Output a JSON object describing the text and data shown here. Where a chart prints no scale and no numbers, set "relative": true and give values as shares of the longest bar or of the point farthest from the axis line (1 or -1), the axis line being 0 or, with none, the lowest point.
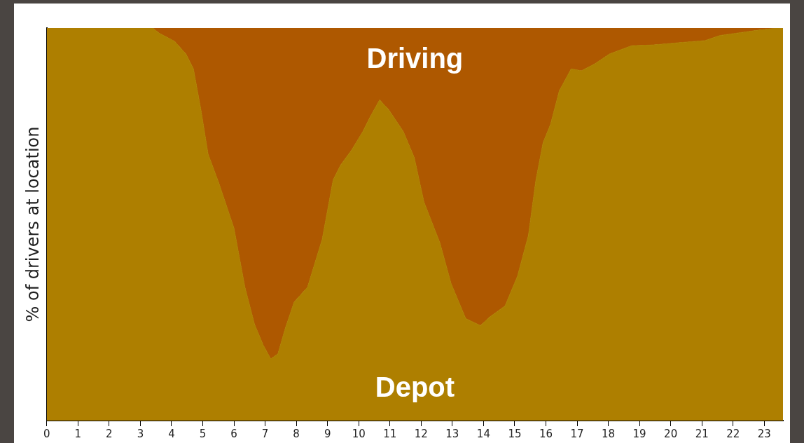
{
  "chart_data": {
    "type": "area",
    "stacked": true,
    "relative": true,
    "legend": false,
    "grid": false,
    "ylabel": "% of drivers at location",
    "x": [
      0,
      3.4,
      3.6,
      4.1,
      4.46,
      4.7,
      4.94,
      5.17,
      5.52,
      6.0,
      6.35,
      6.66,
      6.94,
      7.18,
      7.41,
      7.65,
      7.93,
      8.36,
      8.83,
      9.18,
      9.42,
      9.77,
      10.13,
      10.37,
      10.67,
      10.96,
      11.43,
      11.78,
      12.09,
      12.6,
      12.96,
      13.43,
      13.9,
      14.2,
      14.69,
      15.09,
      15.44,
      15.68,
      15.91,
      16.15,
      16.43,
      16.81,
      17.14,
      17.57,
      18.04,
      18.75,
      19.46,
      20.17,
      21.1,
      21.58,
      22.3,
      22.76,
      23.2,
      23.6
    ],
    "xlim": [
      0,
      23.6
    ],
    "xticks": [
      0,
      1,
      2,
      3,
      4,
      5,
      6,
      7,
      8,
      9,
      10,
      11,
      12,
      13,
      14,
      15,
      16,
      17,
      18,
      19,
      20,
      21,
      22,
      23
    ],
    "series": [
      {
        "name": "Depot",
        "color": "#ae7f00",
        "values": [
          1,
          1,
          0.987,
          0.966,
          0.934,
          0.896,
          0.792,
          0.679,
          0.604,
          0.49,
          0.34,
          0.245,
          0.192,
          0.157,
          0.17,
          0.236,
          0.302,
          0.34,
          0.462,
          0.613,
          0.651,
          0.689,
          0.736,
          0.774,
          0.817,
          0.792,
          0.736,
          0.67,
          0.557,
          0.453,
          0.349,
          0.26,
          0.242,
          0.264,
          0.292,
          0.368,
          0.472,
          0.613,
          0.708,
          0.755,
          0.84,
          0.896,
          0.891,
          0.909,
          0.934,
          0.955,
          0.957,
          0.962,
          0.968,
          0.981,
          0.989,
          0.994,
          0.998,
          1
        ]
      },
      {
        "name": "Driving",
        "color": "#ae5800",
        "values": [
          0,
          0,
          0.013,
          0.034,
          0.066,
          0.104,
          0.208,
          0.321,
          0.396,
          0.51,
          0.66,
          0.755,
          0.808,
          0.843,
          0.83,
          0.764,
          0.698,
          0.66,
          0.538,
          0.387,
          0.349,
          0.311,
          0.264,
          0.226,
          0.183,
          0.208,
          0.264,
          0.33,
          0.443,
          0.547,
          0.651,
          0.74,
          0.758,
          0.736,
          0.708,
          0.632,
          0.528,
          0.387,
          0.292,
          0.245,
          0.16,
          0.104,
          0.109,
          0.091,
          0.066,
          0.045,
          0.043,
          0.038,
          0.032,
          0.019,
          0.011,
          0.006,
          0.002,
          0
        ]
      }
    ]
  }
}
